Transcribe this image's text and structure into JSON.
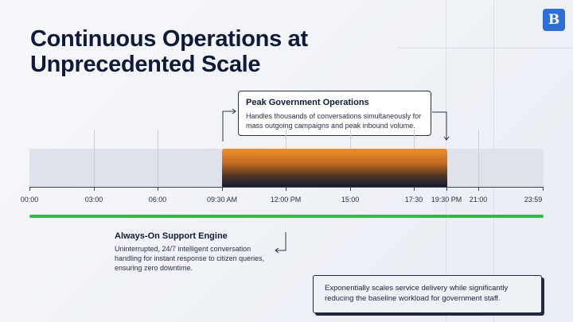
{
  "slide": {
    "title_line1": "Continuous Operations at",
    "title_line2": "Unprecedented Scale",
    "logo_letter": "B",
    "logo_icon": "newspaper-logo-icon",
    "accent_color": "#2e6fd6"
  },
  "peak_callout": {
    "title": "Peak Government Operations",
    "description": "Handles thousands of conversations simultaneously for mass outgoing campaigns and peak inbound volume.",
    "start": "09:30 AM",
    "end": "19:30 PM",
    "colors": [
      "#ef8f2c",
      "#141a33"
    ]
  },
  "timeline": {
    "ticks": [
      "00:00",
      "03:00",
      "06:00",
      "09:30 AM",
      "12:00 PM",
      "15:00",
      "17:30",
      "19:30 PM",
      "21:00",
      "23:59"
    ]
  },
  "support_callout": {
    "title": "Always-On Support Engine",
    "description": "Uninterrupted, 24/7 intelligent conversation handling for instant response to citizen queries, ensuring zero downtime.",
    "bar_color": "#39b54a"
  },
  "summary": {
    "text": "Exponentially scales service delivery while significantly reducing the baseline workload for government staff."
  }
}
